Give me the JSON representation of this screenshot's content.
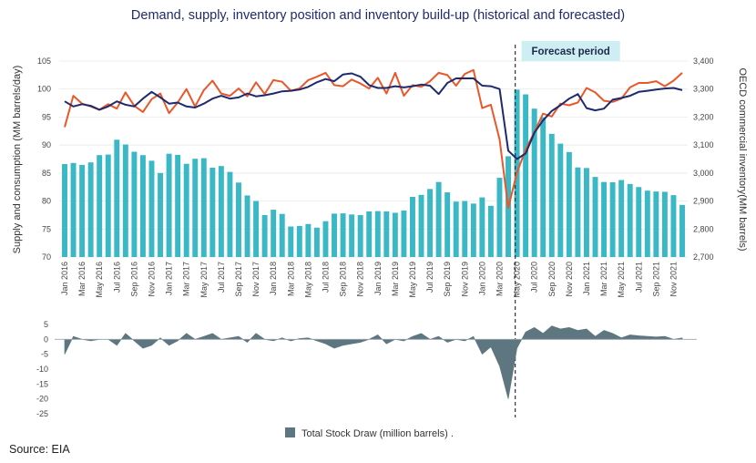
{
  "chart_data": {
    "type": "bar+line",
    "title": "Demand, supply, inventory position and inventory build-up (historical and forecasted)",
    "ylabel_left": "Supply and consumption (MM barrels/day)",
    "ylabel_right": "OECD commercial inventory(MM barrels)",
    "ylim_left": [
      70,
      105
    ],
    "ylim_right": [
      2700,
      3400
    ],
    "yticks_left": [
      "105",
      "100",
      "95",
      "90",
      "85",
      "80",
      "75",
      "70"
    ],
    "yticks_right": [
      "3,400",
      "3,300",
      "3,200",
      "3,100",
      "3,000",
      "2,900",
      "2,800",
      "2,700"
    ],
    "forecast_label": "Forecast period",
    "forecast_start_index": 52,
    "xticks": [
      {
        "i": 0,
        "label": "Jan 2016"
      },
      {
        "i": 2,
        "label": "Mar 2016"
      },
      {
        "i": 4,
        "label": "May 2016"
      },
      {
        "i": 6,
        "label": "Jul 2016"
      },
      {
        "i": 8,
        "label": "Sep 2016"
      },
      {
        "i": 10,
        "label": "Nov 2016"
      },
      {
        "i": 12,
        "label": "Jan 2017"
      },
      {
        "i": 14,
        "label": "Mar 2017"
      },
      {
        "i": 16,
        "label": "May 2017"
      },
      {
        "i": 18,
        "label": "Jul 2017"
      },
      {
        "i": 20,
        "label": "Sep 2017"
      },
      {
        "i": 22,
        "label": "Nov 2017"
      },
      {
        "i": 24,
        "label": "Jan 2018"
      },
      {
        "i": 26,
        "label": "Mar 2018"
      },
      {
        "i": 28,
        "label": "May 2018"
      },
      {
        "i": 30,
        "label": "Jul 2018"
      },
      {
        "i": 32,
        "label": "Sep 2018"
      },
      {
        "i": 34,
        "label": "Nov 2018"
      },
      {
        "i": 36,
        "label": "Jan 2019"
      },
      {
        "i": 38,
        "label": "Mar 2019"
      },
      {
        "i": 40,
        "label": "May 2019"
      },
      {
        "i": 42,
        "label": "Jul 2019"
      },
      {
        "i": 44,
        "label": "Sep 2019"
      },
      {
        "i": 46,
        "label": "Nov 2019"
      },
      {
        "i": 48,
        "label": "Jan 2020"
      },
      {
        "i": 50,
        "label": "Mar 2020"
      },
      {
        "i": 52,
        "label": "May 2020"
      },
      {
        "i": 54,
        "label": "Jul 2020"
      },
      {
        "i": 56,
        "label": "Sep 2020"
      },
      {
        "i": 58,
        "label": "Nov 2020"
      },
      {
        "i": 60,
        "label": "Jan 2021"
      },
      {
        "i": 62,
        "label": "Mar 2021"
      },
      {
        "i": 64,
        "label": "May 2021"
      },
      {
        "i": 66,
        "label": "Jul 2021"
      },
      {
        "i": 68,
        "label": "Sep 2021"
      },
      {
        "i": 70,
        "label": "Nov 2021"
      }
    ],
    "series": [
      {
        "kind": "bar",
        "axis": "right",
        "color": "#3ab8c6",
        "values": [
          3032,
          3036,
          3029,
          3038,
          3064,
          3066,
          3119,
          3102,
          3076,
          3064,
          3044,
          3000,
          3069,
          3065,
          3033,
          3051,
          3053,
          3019,
          3025,
          3004,
          2966,
          2920,
          2900,
          2850,
          2869,
          2854,
          2809,
          2811,
          2818,
          2805,
          2828,
          2855,
          2856,
          2852,
          2850,
          2863,
          2864,
          2863,
          2858,
          2866,
          2915,
          2922,
          2943,
          2968,
          2931,
          2898,
          2900,
          2891,
          2913,
          2883,
          2983,
          3060,
          3298,
          3281,
          3230,
          3199,
          3140,
          3105,
          3075,
          3020,
          3018,
          2986,
          2968,
          2967,
          2975,
          2961,
          2950,
          2937,
          2934,
          2933,
          2921,
          2886
        ]
      },
      {
        "kind": "line",
        "axis": "left",
        "color": "#e8582a",
        "values": [
          93.2,
          98.8,
          97.4,
          96.9,
          96.3,
          97.3,
          96.5,
          99.4,
          97.0,
          95.9,
          98.2,
          99.2,
          95.7,
          97.6,
          100.0,
          96.9,
          99.8,
          101.5,
          99.2,
          98.8,
          100.1,
          98.7,
          101.2,
          99.1,
          101.6,
          101.3,
          99.7,
          100.1,
          101.6,
          102.2,
          102.9,
          100.7,
          100.5,
          101.7,
          101.0,
          100.1,
          102.0,
          99.2,
          102.9,
          98.8,
          100.7,
          100.4,
          101.4,
          102.9,
          102.5,
          100.6,
          102.7,
          103.4,
          96.6,
          97.2,
          91.0,
          78.8,
          85.1,
          89.2,
          92.3,
          95.6,
          95.1,
          97.4,
          97.1,
          97.6,
          100.2,
          99.4,
          97.9,
          97.7,
          98.3,
          100.3,
          101.1,
          101.1,
          101.4,
          100.5,
          101.5,
          102.9
        ]
      },
      {
        "kind": "line",
        "axis": "left",
        "color": "#1f2a6e",
        "values": [
          97.8,
          96.9,
          97.3,
          97.0,
          96.3,
          96.9,
          97.8,
          97.2,
          96.9,
          98.3,
          99.5,
          98.5,
          97.4,
          97.6,
          96.9,
          96.7,
          97.4,
          98.3,
          98.8,
          98.3,
          98.5,
          99.2,
          98.7,
          98.9,
          99.2,
          99.6,
          99.7,
          99.9,
          100.4,
          101.2,
          101.8,
          101.4,
          102.6,
          102.8,
          102.2,
          100.7,
          100.2,
          100.2,
          100.5,
          100.3,
          100.5,
          100.8,
          100.6,
          99.1,
          101.1,
          101.9,
          101.9,
          101.9,
          100.6,
          100.5,
          100.0,
          89.0,
          87.5,
          88.5,
          92.2,
          94.4,
          96.1,
          97.1,
          98.3,
          99.1,
          96.6,
          96.2,
          96.5,
          98.1,
          98.4,
          98.8,
          99.5,
          99.7,
          99.9,
          100.1,
          100.2,
          99.8
        ]
      }
    ],
    "stock_draw": {
      "type": "area",
      "legend": "Total Stock Draw (million barrels) .",
      "color": "#5d7680",
      "ylim": [
        -25,
        5
      ],
      "yticks": [
        "5",
        "0",
        "-5",
        "-10",
        "-15",
        "-20",
        "-25"
      ],
      "values": [
        -5,
        1,
        0,
        -0.5,
        0,
        0,
        -2,
        2,
        -0.5,
        -3,
        -2,
        0.5,
        -2,
        -0.5,
        2,
        0,
        1,
        2,
        0,
        0.5,
        1,
        -1,
        2,
        0,
        -0.5,
        0.5,
        -0.5,
        0.3,
        0.5,
        -0.5,
        -1.5,
        -3,
        -2,
        -1.5,
        -1,
        0,
        1.5,
        -1.5,
        0,
        -0.5,
        1,
        2,
        0,
        1,
        -1,
        0,
        -0.5,
        1,
        -5,
        -2.5,
        -9,
        -20,
        -3,
        2.5,
        4,
        2,
        4.5,
        3.5,
        4,
        3,
        3.5,
        1,
        3,
        2,
        0.5,
        1.5,
        1.2,
        1,
        0.8,
        1,
        0,
        0.5
      ]
    }
  },
  "source_text": "Source: EIA"
}
